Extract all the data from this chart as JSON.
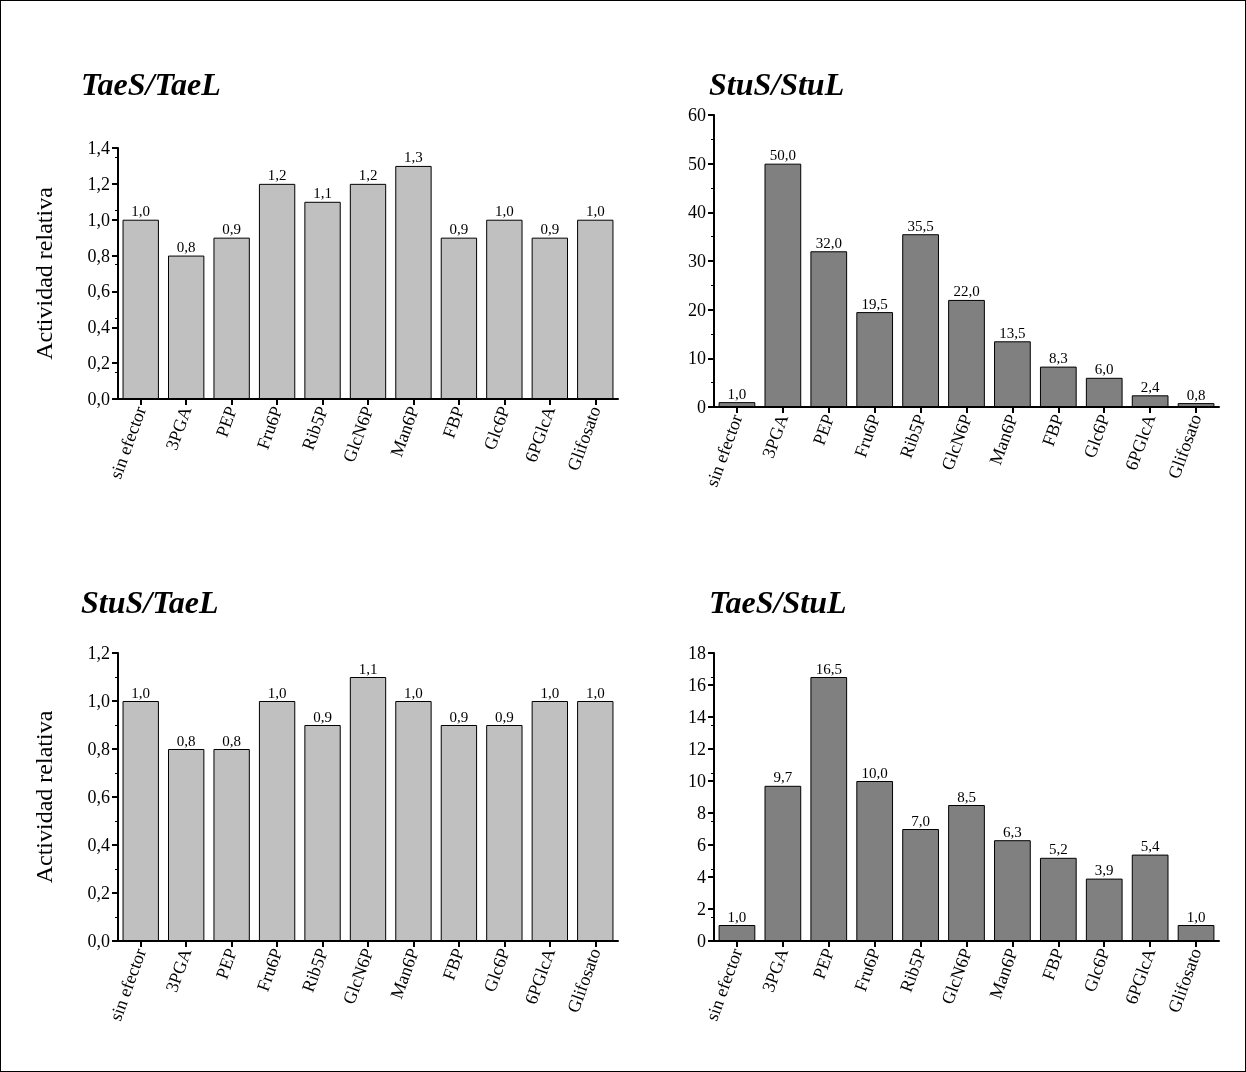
{
  "chart_data": [
    {
      "type": "bar",
      "title": "TaeS/TaeL",
      "ylabel": "Actividad relativa",
      "categories": [
        "sin efector",
        "3PGA",
        "PEP",
        "Fru6P",
        "Rib5P",
        "GlcN6P",
        "Man6P",
        "FBP",
        "Glc6P",
        "6PGlcA",
        "Glifosato"
      ],
      "values": [
        1.0,
        0.8,
        0.9,
        1.2,
        1.1,
        1.2,
        1.3,
        0.9,
        1.0,
        0.9,
        1.0
      ],
      "color": "#c0c0c0",
      "value_labels": [
        "1,0",
        "0,8",
        "0,9",
        "1,2",
        "1,1",
        "1,2",
        "1,3",
        "0,9",
        "1,0",
        "0,9",
        "1,0"
      ],
      "ylim": [
        0,
        1.4
      ],
      "yticks": [
        {
          "value": 0,
          "label": "0,0"
        },
        {
          "value": 0.2,
          "label": "0,2"
        },
        {
          "value": 0.4,
          "label": "0,4"
        },
        {
          "value": 0.6,
          "label": "0,6"
        },
        {
          "value": 0.8,
          "label": "0,8"
        },
        {
          "value": 1.0,
          "label": "1,0"
        },
        {
          "value": 1.2,
          "label": "1,2"
        },
        {
          "value": 1.4,
          "label": "1,4"
        }
      ],
      "grid": false
    },
    {
      "type": "bar",
      "title": "StuS/StuL",
      "categories": [
        "sin efector",
        "3PGA",
        "PEP",
        "Fru6P",
        "Rib5P",
        "GlcN6P",
        "Man6P",
        "FBP",
        "Glc6P",
        "6PGlcA",
        "Glifosato"
      ],
      "values": [
        1.0,
        50.0,
        32.0,
        19.5,
        35.5,
        22.0,
        13.5,
        8.3,
        6.0,
        2.4,
        0.8
      ],
      "color": "#808080",
      "value_labels": [
        "1,0",
        "50,0",
        "32,0",
        "19,5",
        "35,5",
        "22,0",
        "13,5",
        "8,3",
        "6,0",
        "2,4",
        "0,8"
      ],
      "ylim": [
        0,
        60
      ],
      "yticks": [
        0,
        10,
        20,
        30,
        40,
        50,
        60
      ],
      "grid": false
    },
    {
      "type": "bar",
      "title": "StuS/TaeL",
      "ylabel": "Actividad relativa",
      "categories": [
        "sin efector",
        "3PGA",
        "PEP",
        "Fru6P",
        "Rib5P",
        "GlcN6P",
        "Man6P",
        "FBP",
        "Glc6P",
        "6PGlcA",
        "Glifosato"
      ],
      "values": [
        1.0,
        0.8,
        0.8,
        1.0,
        0.9,
        1.1,
        1.0,
        0.9,
        0.9,
        1.0,
        1.0
      ],
      "color": "#c0c0c0",
      "value_labels": [
        "1,0",
        "0,8",
        "0,8",
        "1,0",
        "0,9",
        "1,1",
        "1,0",
        "0,9",
        "0,9",
        "1,0",
        "1,0"
      ],
      "ylim": [
        0,
        1.2
      ],
      "yticks": [
        {
          "value": 0,
          "label": "0,0"
        },
        {
          "value": 0.2,
          "label": "0,2"
        },
        {
          "value": 0.4,
          "label": "0,4"
        },
        {
          "value": 0.6,
          "label": "0,6"
        },
        {
          "value": 0.8,
          "label": "0,8"
        },
        {
          "value": 1.0,
          "label": "1,0"
        },
        {
          "value": 1.2,
          "label": "1,2"
        }
      ],
      "grid": false
    },
    {
      "type": "bar",
      "title": "TaeS/StuL",
      "categories": [
        "sin efector",
        "3PGA",
        "PEP",
        "Fru6P",
        "Rib5P",
        "GlcN6P",
        "Man6P",
        "FBP",
        "Glc6P",
        "6PGlcA",
        "Glifosato"
      ],
      "values": [
        1.0,
        9.7,
        16.5,
        10.0,
        7.0,
        8.5,
        6.3,
        5.2,
        3.9,
        5.4,
        1.0
      ],
      "color": "#808080",
      "value_labels": [
        "1,0",
        "9,7",
        "16,5",
        "10,0",
        "7,0",
        "8,5",
        "6,3",
        "5,2",
        "3,9",
        "5,4",
        "1,0"
      ],
      "ylim": [
        0,
        18
      ],
      "yticks": [
        0,
        2,
        4,
        6,
        8,
        10,
        12,
        14,
        16,
        18
      ],
      "grid": false
    }
  ]
}
